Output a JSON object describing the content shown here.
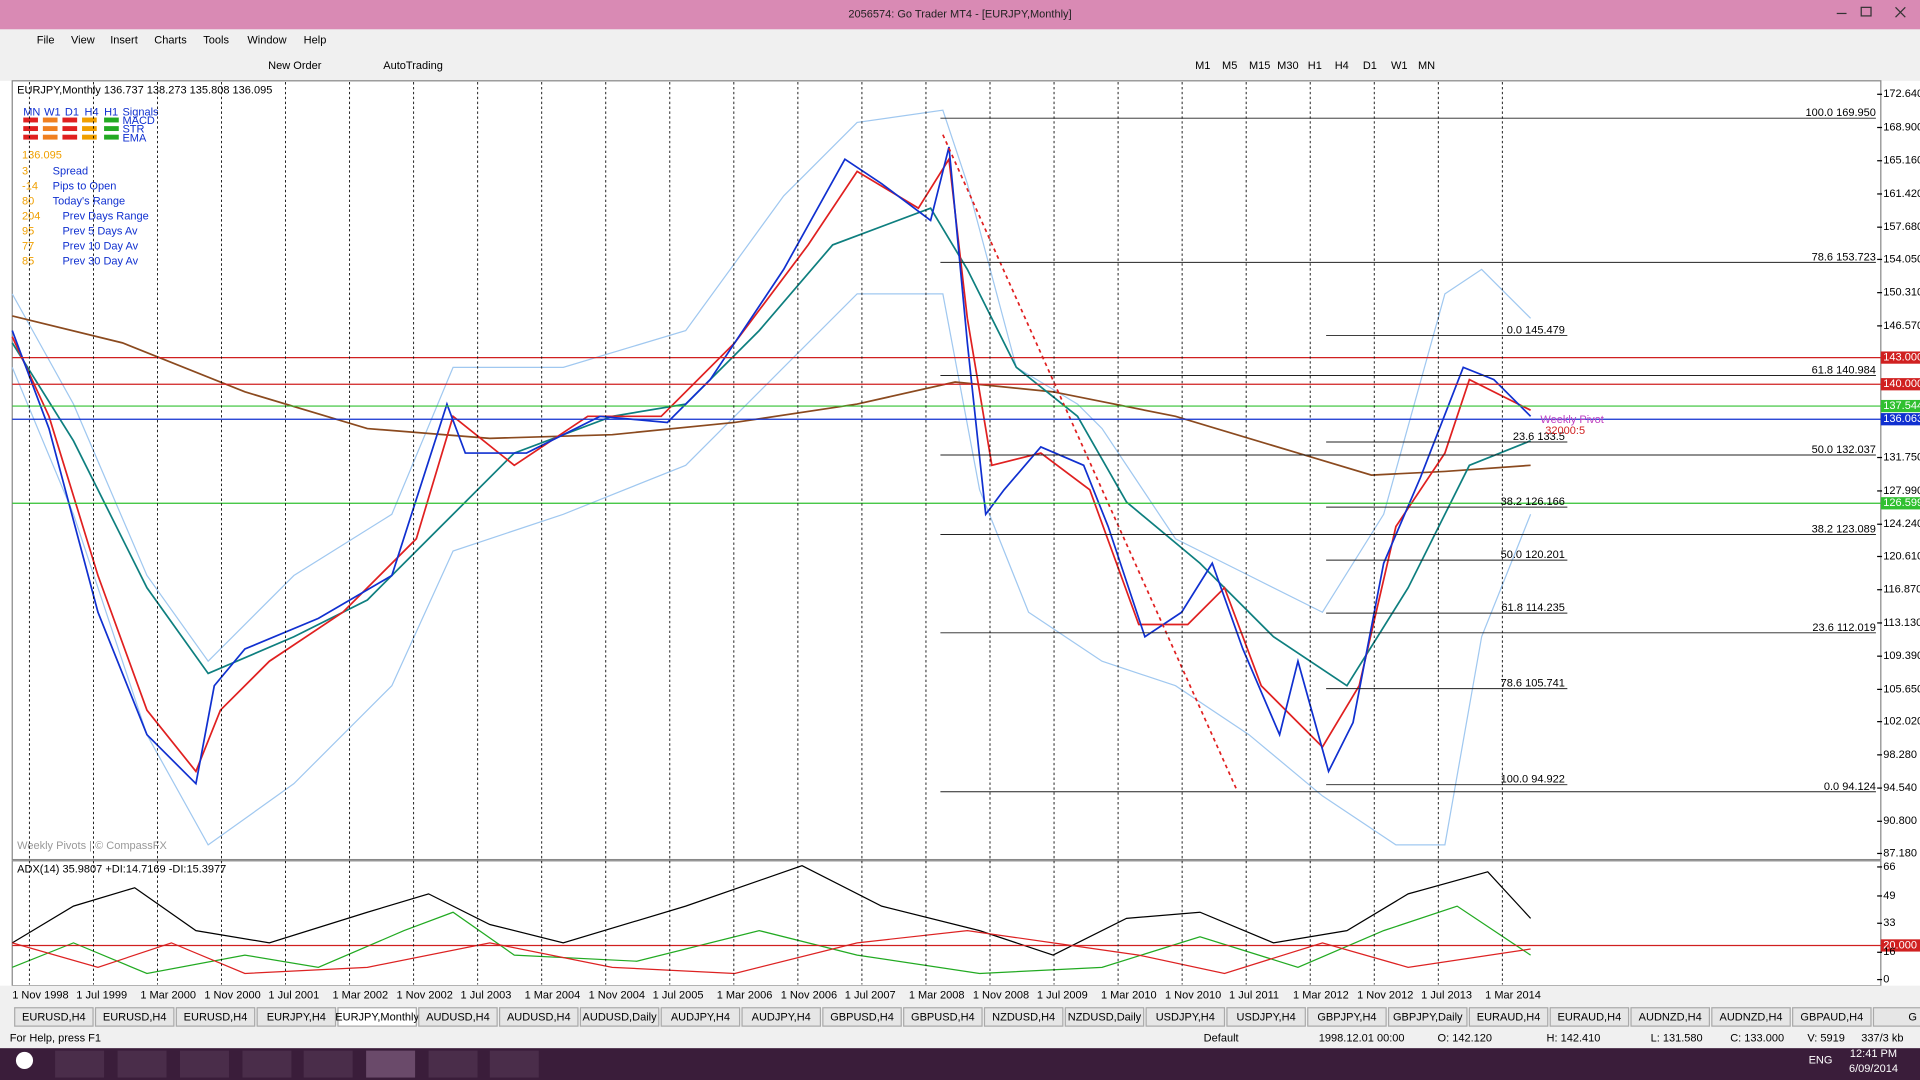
{
  "window": {
    "title": "2056574: Go Trader MT4 - [EURJPY,Monthly]"
  },
  "menu": [
    "File",
    "View",
    "Insert",
    "Charts",
    "Tools",
    "Window",
    "Help"
  ],
  "toolbar": [
    "New Order",
    "AutoTrading",
    "M1",
    "M5",
    "M15",
    "M30",
    "H1",
    "H4",
    "D1",
    "W1",
    "MN"
  ],
  "chart": {
    "header": "EURJPY,Monthly  136.737 138.273 135.808 136.095",
    "signals": [
      "MN",
      "W1",
      "D1",
      "H4",
      "H1",
      "Signals"
    ],
    "signal_rows": [
      "MACD",
      "STR",
      "EMA"
    ],
    "price": "136.095",
    "panel": [
      [
        "3",
        "Spread"
      ],
      [
        "-14",
        "Pips to Open"
      ],
      [
        "80",
        "Today's Range"
      ],
      [
        "204",
        "Prev Days Range"
      ],
      [
        "95",
        "Prev 5 Days Av"
      ],
      [
        "77",
        "Prev 10 Day Av"
      ],
      [
        "85",
        "Prev 30 Day Av"
      ]
    ],
    "price_ticks": [
      {
        "value": 172.64,
        "label": "172.640"
      },
      {
        "value": 168.9,
        "label": "168.900"
      },
      {
        "value": 165.16,
        "label": "165.160"
      },
      {
        "value": 161.42,
        "label": "161.420"
      },
      {
        "value": 157.68,
        "label": "157.680"
      },
      {
        "value": 154.05,
        "label": "154.050"
      },
      {
        "value": 150.31,
        "label": "150.310"
      },
      {
        "value": 146.57,
        "label": "146.570"
      },
      {
        "value": 131.75,
        "label": "131.750"
      },
      {
        "value": 127.99,
        "label": "127.990"
      },
      {
        "value": 124.24,
        "label": "124.240"
      },
      {
        "value": 120.61,
        "label": "120.610"
      },
      {
        "value": 116.87,
        "label": "116.870"
      },
      {
        "value": 113.13,
        "label": "113.130"
      },
      {
        "value": 109.39,
        "label": "109.390"
      },
      {
        "value": 105.65,
        "label": "105.650"
      },
      {
        "value": 102.02,
        "label": "102.020"
      },
      {
        "value": 98.28,
        "label": "98.280"
      },
      {
        "value": 94.54,
        "label": "94.540"
      },
      {
        "value": 90.8,
        "label": "90.800"
      },
      {
        "value": 87.18,
        "label": "87.180"
      }
    ],
    "levels": [
      {
        "value": 143,
        "label": "143.000",
        "color": "#d02020"
      },
      {
        "value": 140,
        "label": "140.000",
        "color": "#d02020"
      },
      {
        "value": 137.544,
        "label": "137.544",
        "color": "#30c030"
      },
      {
        "value": 136.063,
        "label": "136.063",
        "color": "#1030d0"
      },
      {
        "value": 126.599,
        "label": "126.599",
        "color": "#30c030"
      }
    ],
    "fib_long": [
      {
        "value": 169.95,
        "label": "100.0  169.950"
      },
      {
        "value": 153.723,
        "label": "78.6  153.723"
      },
      {
        "value": 140.984,
        "label": "61.8  140.984"
      },
      {
        "value": 132.037,
        "label": "50.0  132.037"
      },
      {
        "value": 123.089,
        "label": "38.2  123.089"
      },
      {
        "value": 112.019,
        "label": "23.6  112.019"
      },
      {
        "value": 94.124,
        "label": "0.0  94.124"
      }
    ],
    "fib_short": [
      {
        "value": 145.479,
        "label": "0.0  145.479"
      },
      {
        "value": 133.5,
        "label": "23.6  133.5"
      },
      {
        "value": 126.166,
        "label": "38.2  126.166"
      },
      {
        "value": 120.201,
        "label": "50.0  120.201"
      },
      {
        "value": 114.235,
        "label": "61.8  114.235"
      },
      {
        "value": 105.741,
        "label": "78.6  105.741"
      },
      {
        "value": 94.922,
        "label": "100.0  94.922"
      }
    ],
    "pivot_label": "Weekly Pivot",
    "big_label": "32000:5",
    "footer": "Weekly Pivots | © CompassFX"
  },
  "indicator": {
    "header": "ADX(14) 35.9807 +DI:14.7169 -DI:15.3977",
    "levels": [
      {
        "value": 66,
        "label": "66"
      },
      {
        "value": 49,
        "label": "49"
      },
      {
        "value": 33,
        "label": "33"
      },
      {
        "value": 20,
        "label": "20.000"
      },
      {
        "value": 16,
        "label": "16"
      },
      {
        "value": 0,
        "label": "0"
      }
    ]
  },
  "dates": [
    "1 Nov 1998",
    "1 Jul 1999",
    "1 Mar 2000",
    "1 Nov 2000",
    "1 Jul 2001",
    "1 Mar 2002",
    "1 Nov 2002",
    "1 Jul 2003",
    "1 Mar 2004",
    "1 Nov 2004",
    "1 Jul 2005",
    "1 Mar 2006",
    "1 Nov 2006",
    "1 Jul 2007",
    "1 Mar 2008",
    "1 Nov 2008",
    "1 Jul 2009",
    "1 Mar 2010",
    "1 Nov 2010",
    "1 Jul 2011",
    "1 Mar 2012",
    "1 Nov 2012",
    "1 Jul 2013",
    "1 Mar 2014"
  ],
  "tabs": [
    "EURUSD,H4",
    "EURUSD,H4",
    "EURUSD,H4",
    "EURJPY,H4",
    "EURJPY,Monthly",
    "AUDUSD,H4",
    "AUDUSD,H4",
    "AUDUSD,Daily",
    "AUDJPY,H4",
    "AUDJPY,H4",
    "GBPUSD,H4",
    "GBPUSD,H4",
    "NZDUSD,H4",
    "NZDUSD,Daily",
    "USDJPY,H4",
    "USDJPY,H4",
    "GBPJPY,H4",
    "GBPJPY,Daily",
    "EURAUD,H4",
    "EURAUD,H4",
    "AUDNZD,H4",
    "AUDNZD,H4",
    "GBPAUD,H4",
    "G"
  ],
  "status": [
    "For Help, press F1",
    "Default",
    "1998.12.01 00:00",
    "O: 142.120",
    "H: 142.410",
    "L: 131.580",
    "C: 133.000",
    "V: 5919",
    "337/3 kb"
  ],
  "taskbar": {
    "lang": "ENG",
    "time": "12:41 PM",
    "date": "6/09/2014"
  }
}
